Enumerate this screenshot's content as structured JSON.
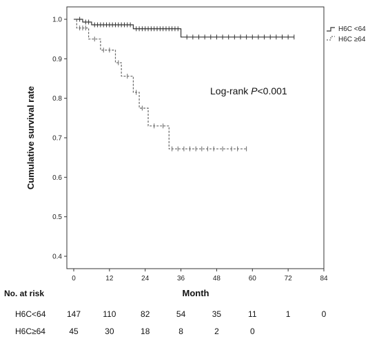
{
  "chart_data": {
    "type": "line",
    "title": "",
    "xlabel": "Month",
    "ylabel": "Cumulative survival rate",
    "xlim": [
      0,
      84
    ],
    "ylim": [
      0.4,
      1.0
    ],
    "x_ticks": [
      "0",
      "12",
      "24",
      "36",
      "48",
      "60",
      "72",
      "84"
    ],
    "y_ticks": [
      "0.4",
      "0.5",
      "0.6",
      "0.7",
      "0.8",
      "0.9",
      "1.0"
    ],
    "legend_position": "top-right",
    "grid": false,
    "annotation": {
      "prefix": "Log-rank ",
      "italic": "P",
      "suffix": "<0.001"
    },
    "series": [
      {
        "name": "H6C <64",
        "line_style": "solid",
        "color": "#333333",
        "steps": [
          [
            0,
            1.0
          ],
          [
            3,
            0.993
          ],
          [
            6,
            0.986
          ],
          [
            20,
            0.976
          ],
          [
            36,
            0.955
          ],
          [
            74,
            0.955
          ]
        ],
        "censored": [
          2,
          4,
          5,
          7,
          8,
          9,
          10,
          11,
          12,
          13,
          14,
          15,
          16,
          17,
          18,
          19,
          21,
          22,
          23,
          24,
          25,
          26,
          27,
          28,
          29,
          30,
          31,
          32,
          33,
          34,
          35,
          38,
          40,
          42,
          44,
          46,
          48,
          50,
          52,
          54,
          56,
          58,
          60,
          62,
          64,
          66,
          68,
          70,
          72,
          74
        ]
      },
      {
        "name": "H6C ≥64",
        "line_style": "dashed",
        "color": "#666666",
        "steps": [
          [
            0,
            1.0
          ],
          [
            1,
            0.978
          ],
          [
            5,
            0.95
          ],
          [
            9,
            0.922
          ],
          [
            14,
            0.89
          ],
          [
            16,
            0.856
          ],
          [
            20,
            0.815
          ],
          [
            22,
            0.775
          ],
          [
            25,
            0.73
          ],
          [
            32,
            0.672
          ],
          [
            58,
            0.672
          ]
        ],
        "censored": [
          2,
          3,
          4,
          7,
          10,
          12,
          15,
          18,
          21,
          23,
          27,
          30,
          33,
          35,
          37,
          39,
          41,
          43,
          45,
          47,
          50,
          53,
          55,
          58
        ]
      }
    ],
    "risk_table": {
      "title": "No. at risk",
      "rows": [
        {
          "label": "H6C<64",
          "values": [
            "147",
            "110",
            "82",
            "54",
            "35",
            "11",
            "1",
            "0"
          ]
        },
        {
          "label": "H6C≥64",
          "values": [
            "45",
            "30",
            "18",
            "8",
            "2",
            "0"
          ]
        }
      ]
    }
  }
}
